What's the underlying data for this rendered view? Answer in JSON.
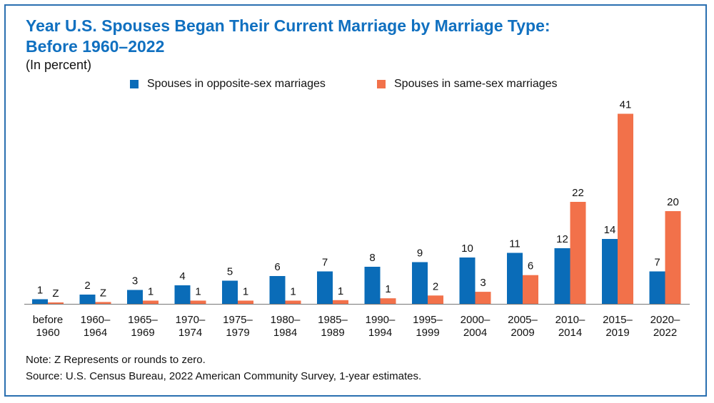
{
  "header": {
    "title_line1": "Year U.S. Spouses Began Their Current Marriage by Marriage Type:",
    "title_line2": "Before 1960–2022",
    "subtitle": "(In percent)"
  },
  "footer": {
    "note": "Note: Z Represents or rounds to zero.",
    "source": "Source: U.S. Census Bureau, 2022 American Community Survey, 1-year estimates."
  },
  "colors": {
    "opposite": "#0a6cb8",
    "same": "#f2714a",
    "frame": "#2a6fb0",
    "title": "#1070c0"
  },
  "chart_data": {
    "type": "bar",
    "title": "Year U.S. Spouses Began Their Current Marriage by Marriage Type: Before 1960–2022",
    "ylabel": "(In percent)",
    "categories": [
      [
        "before",
        "1960"
      ],
      [
        "1960–",
        "1964"
      ],
      [
        "1965–",
        "1969"
      ],
      [
        "1970–",
        "1974"
      ],
      [
        "1975–",
        "1979"
      ],
      [
        "1980–",
        "1984"
      ],
      [
        "1985–",
        "1989"
      ],
      [
        "1990–",
        "1994"
      ],
      [
        "1995–",
        "1999"
      ],
      [
        "2000–",
        "2004"
      ],
      [
        "2005–",
        "2009"
      ],
      [
        "2010–",
        "2014"
      ],
      [
        "2015–",
        "2019"
      ],
      [
        "2020–",
        "2022"
      ]
    ],
    "ylim": [
      0,
      45
    ],
    "grid": false,
    "legend_position": "top",
    "series": [
      {
        "name": "Spouses in opposite-sex marriages",
        "color": "#0a6cb8",
        "values": [
          1,
          2,
          3,
          4,
          5,
          6,
          7,
          8,
          9,
          10,
          11,
          12,
          14,
          7
        ],
        "labels": [
          "1",
          "2",
          "3",
          "4",
          "5",
          "6",
          "7",
          "8",
          "9",
          "10",
          "11",
          "12",
          "14",
          "7"
        ]
      },
      {
        "name": "Spouses in same-sex marriages",
        "color": "#f2714a",
        "values": [
          0.2,
          0.4,
          0.7,
          0.7,
          0.7,
          0.7,
          0.8,
          1.2,
          1.8,
          2.6,
          6.2,
          22,
          41,
          20
        ],
        "labels": [
          "Z",
          "Z",
          "1",
          "1",
          "1",
          "1",
          "1",
          "1",
          "2",
          "3",
          "6",
          "22",
          "41",
          "20"
        ]
      }
    ]
  }
}
